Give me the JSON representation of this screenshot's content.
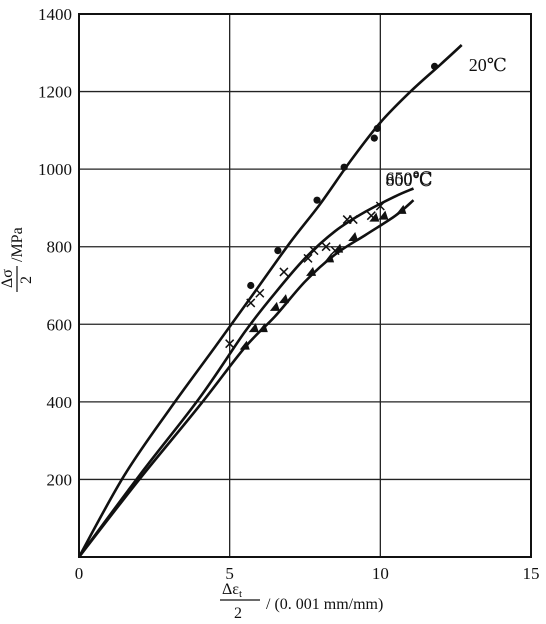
{
  "chart_data": {
    "type": "scatter",
    "title": "",
    "xlabel": {
      "numerator": "Δε",
      "subscript": "t",
      "denominator": "2",
      "unit": "/ (0. 001  mm/mm)"
    },
    "ylabel": {
      "numerator": "Δσ",
      "denominator": "2",
      "unit": "/MPa"
    },
    "xlim": [
      0,
      15
    ],
    "ylim": [
      0,
      1400
    ],
    "x_ticks": [
      "0",
      "5",
      "10",
      "15"
    ],
    "y_ticks": [
      "200",
      "400",
      "600",
      "800",
      "1000",
      "1200",
      "1400"
    ],
    "grid": true,
    "series": [
      {
        "name": "20℃",
        "marker": "circle",
        "curve": [
          [
            0,
            0
          ],
          [
            1.5,
            210
          ],
          [
            3,
            380
          ],
          [
            4.5,
            540
          ],
          [
            5.8,
            680
          ],
          [
            7,
            810
          ],
          [
            8,
            910
          ],
          [
            9,
            1020
          ],
          [
            10,
            1120
          ],
          [
            11,
            1200
          ],
          [
            12,
            1270
          ],
          [
            12.7,
            1320
          ]
        ],
        "points": [
          [
            5.7,
            700
          ],
          [
            6.6,
            790
          ],
          [
            7.9,
            920
          ],
          [
            8.8,
            1005
          ],
          [
            9.8,
            1080
          ],
          [
            9.9,
            1105
          ],
          [
            11.8,
            1265
          ]
        ]
      },
      {
        "name": "650℃",
        "marker": "x",
        "curve": [
          [
            0,
            0
          ],
          [
            2,
            210
          ],
          [
            4,
            410
          ],
          [
            5.5,
            580
          ],
          [
            6.5,
            680
          ],
          [
            7.5,
            770
          ],
          [
            8.5,
            840
          ],
          [
            9.5,
            890
          ],
          [
            10.5,
            930
          ],
          [
            11.1,
            950
          ]
        ],
        "points": [
          [
            5,
            550
          ],
          [
            5.7,
            655
          ],
          [
            6,
            680
          ],
          [
            6.8,
            735
          ],
          [
            7.6,
            770
          ],
          [
            7.8,
            790
          ],
          [
            8.2,
            800
          ],
          [
            8.5,
            790
          ],
          [
            8.9,
            870
          ],
          [
            9.1,
            870
          ],
          [
            9.7,
            880
          ],
          [
            10,
            905
          ]
        ]
      },
      {
        "name": "800℃",
        "marker": "triangle",
        "curve": [
          [
            0,
            0
          ],
          [
            2,
            200
          ],
          [
            4,
            390
          ],
          [
            5.5,
            540
          ],
          [
            6.5,
            620
          ],
          [
            7.5,
            710
          ],
          [
            8.5,
            780
          ],
          [
            9.5,
            830
          ],
          [
            10.5,
            880
          ],
          [
            11.1,
            920
          ]
        ],
        "points": [
          [
            5.5,
            545
          ],
          [
            5.8,
            590
          ],
          [
            6.1,
            590
          ],
          [
            6.5,
            645
          ],
          [
            6.8,
            665
          ],
          [
            7.7,
            735
          ],
          [
            8.3,
            770
          ],
          [
            8.6,
            795
          ],
          [
            9.1,
            825
          ],
          [
            9.8,
            875
          ],
          [
            10.1,
            880
          ],
          [
            10.7,
            895
          ]
        ]
      }
    ]
  }
}
